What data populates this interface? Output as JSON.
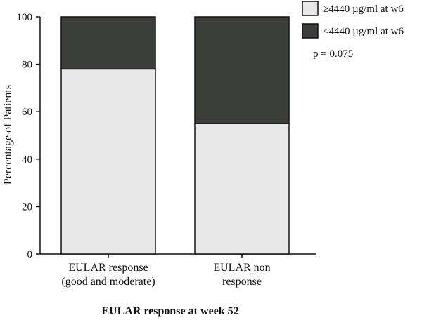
{
  "chart_data": {
    "type": "bar",
    "stacked": true,
    "title": "",
    "xlabel": "EULAR response at week 52",
    "ylabel": "Percentage of Patients",
    "ylim": [
      0,
      100
    ],
    "yticks": [
      "0",
      "20",
      "40",
      "60",
      "80",
      "100"
    ],
    "categories": [
      [
        "EULAR response",
        "(good and moderate)"
      ],
      [
        "EULAR non",
        "response"
      ]
    ],
    "series": [
      {
        "name": "≥4440 µg/ml at w6",
        "values": [
          78,
          55
        ],
        "color": "#e8e8e8"
      },
      {
        "name": "<4440 µg/ml at w6",
        "values": [
          22,
          45
        ],
        "color": "#3c3e3a"
      }
    ],
    "legend_position": "top-right",
    "annotation": "p = 0.075",
    "grid": false
  }
}
